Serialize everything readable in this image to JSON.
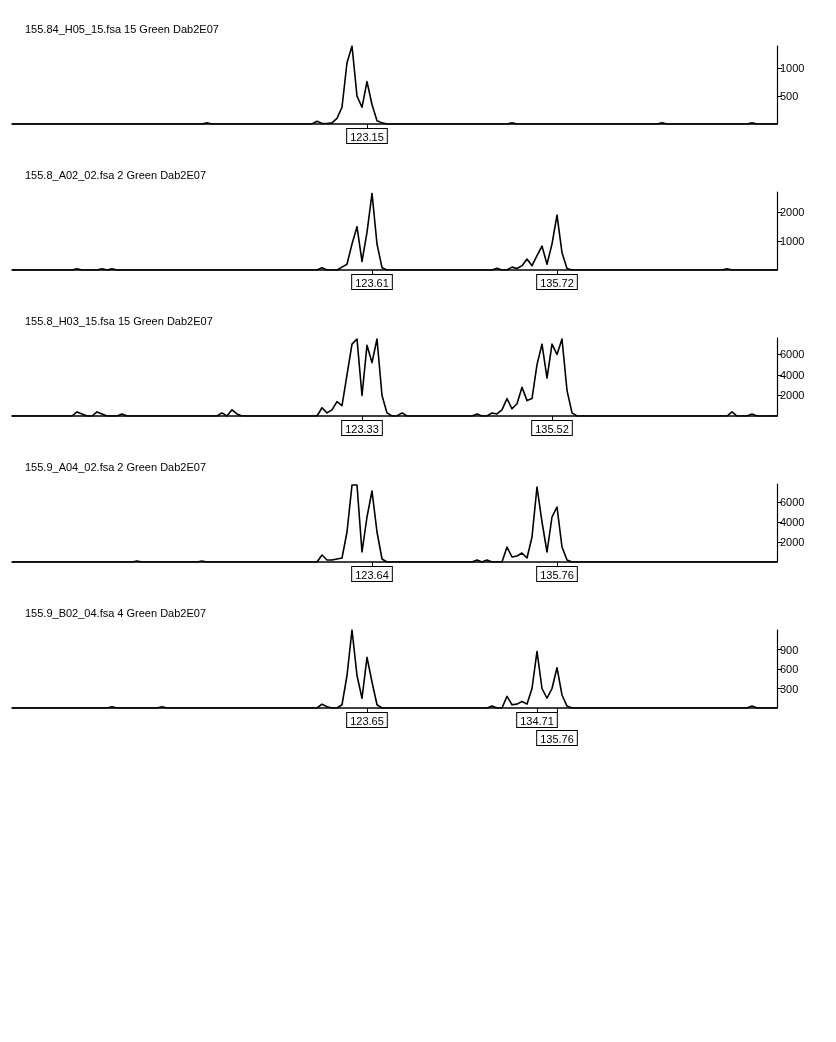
{
  "chart_data": [
    {
      "type": "line",
      "title": "155.84_H05_15.fsa 15 Green Dab2E07",
      "ylim": [
        0,
        1400
      ],
      "yticks": [
        500,
        1000
      ],
      "categories": [
        null,
        null,
        null,
        null,
        null,
        null,
        null,
        null,
        null,
        null,
        null,
        null,
        null,
        null,
        null,
        null,
        null,
        null,
        null,
        null,
        null,
        null,
        null,
        null,
        null,
        null,
        null,
        null,
        null,
        null,
        null,
        null,
        null,
        null,
        null,
        null,
        null,
        null,
        null,
        null,
        null,
        null,
        null,
        null,
        null,
        null,
        null,
        null,
        null,
        null,
        null,
        null,
        null,
        null,
        null,
        null,
        null,
        null,
        null,
        null,
        null,
        null,
        null,
        null,
        null,
        null,
        null,
        null,
        null,
        null,
        null,
        "123.15",
        null,
        null,
        null,
        null,
        null,
        null,
        null,
        null,
        null,
        null,
        null,
        null,
        null,
        null,
        null,
        null,
        null,
        null,
        null,
        null,
        null,
        null,
        null,
        null,
        null,
        null,
        null,
        null,
        null,
        null,
        null,
        null,
        null,
        null,
        null,
        null,
        null,
        null,
        null,
        null,
        null,
        null,
        null,
        null,
        null,
        null,
        null,
        null,
        null,
        null,
        null,
        null,
        null,
        null,
        null,
        null,
        null,
        null,
        null,
        null,
        null,
        null,
        null,
        null,
        null,
        null,
        null,
        null,
        null,
        null,
        null,
        null,
        null,
        null,
        null,
        null,
        null,
        null,
        null,
        null,
        null,
        null
      ],
      "series": [
        {
          "color": "#000000",
          "values": [
            0,
            0,
            0,
            0,
            0,
            0,
            0,
            0,
            0,
            0,
            0,
            0,
            0,
            0,
            0,
            0,
            0,
            0,
            0,
            0,
            0,
            0,
            0,
            0,
            0,
            0,
            0,
            0,
            0,
            0,
            0,
            0,
            0,
            0,
            0,
            0,
            0,
            0,
            0,
            20,
            0,
            0,
            0,
            0,
            0,
            0,
            0,
            0,
            0,
            0,
            0,
            0,
            0,
            0,
            0,
            0,
            0,
            0,
            0,
            0,
            0,
            50,
            10,
            10,
            20,
            100,
            300,
            1100,
            1400,
            500,
            300,
            760,
            350,
            60,
            20,
            0,
            0,
            0,
            0,
            0,
            0,
            0,
            0,
            0,
            0,
            0,
            0,
            0,
            0,
            0,
            0,
            0,
            0,
            0,
            0,
            0,
            0,
            0,
            0,
            0,
            20,
            0,
            0,
            0,
            0,
            0,
            0,
            0,
            0,
            0,
            0,
            0,
            0,
            0,
            0,
            0,
            0,
            0,
            0,
            0,
            0,
            0,
            0,
            0,
            0,
            0,
            0,
            0,
            0,
            0,
            20,
            0,
            0,
            0,
            0,
            0,
            0,
            0,
            0,
            0,
            0,
            0,
            0,
            0,
            0,
            0,
            0,
            0,
            20,
            0,
            0,
            0,
            0,
            0
          ]
        }
      ]
    },
    {
      "type": "line",
      "title": "155.8_A02_02.fsa 2 Green Dab2E07",
      "ylim": [
        0,
        2700
      ],
      "yticks": [
        1000,
        2000
      ],
      "categories": [
        null,
        null,
        null,
        null,
        null,
        null,
        null,
        null,
        null,
        null,
        null,
        null,
        null,
        null,
        null,
        null,
        null,
        null,
        null,
        null,
        null,
        null,
        null,
        null,
        null,
        null,
        null,
        null,
        null,
        null,
        null,
        null,
        null,
        null,
        null,
        null,
        null,
        null,
        null,
        null,
        null,
        null,
        null,
        null,
        null,
        null,
        null,
        null,
        null,
        null,
        null,
        null,
        null,
        null,
        null,
        null,
        null,
        null,
        null,
        null,
        null,
        null,
        null,
        null,
        null,
        null,
        null,
        null,
        null,
        null,
        null,
        null,
        "123.61",
        null,
        null,
        null,
        null,
        null,
        null,
        null,
        null,
        null,
        null,
        null,
        null,
        null,
        null,
        null,
        null,
        null,
        null,
        null,
        null,
        null,
        null,
        null,
        null,
        null,
        null,
        null,
        null,
        null,
        null,
        null,
        null,
        null,
        null,
        null,
        null,
        "135.72",
        null,
        null,
        null,
        null,
        null,
        null,
        null,
        null,
        null,
        null,
        null,
        null,
        null,
        null,
        null,
        null,
        null,
        null,
        null,
        null,
        null,
        null,
        null,
        null,
        null,
        null,
        null,
        null,
        null,
        null,
        null,
        null,
        null,
        null,
        null,
        null,
        null,
        null,
        null,
        null,
        null,
        null,
        null,
        null
      ],
      "series": [
        {
          "color": "#000000",
          "values": [
            0,
            0,
            0,
            0,
            0,
            0,
            0,
            0,
            0,
            0,
            0,
            0,
            0,
            40,
            0,
            0,
            0,
            0,
            40,
            0,
            40,
            0,
            0,
            0,
            0,
            0,
            0,
            0,
            0,
            0,
            0,
            0,
            0,
            0,
            0,
            0,
            0,
            0,
            0,
            0,
            0,
            0,
            0,
            0,
            0,
            0,
            0,
            0,
            0,
            0,
            0,
            0,
            0,
            0,
            0,
            0,
            0,
            0,
            0,
            0,
            0,
            0,
            80,
            0,
            0,
            0,
            100,
            200,
            900,
            1500,
            300,
            1300,
            2650,
            900,
            80,
            0,
            0,
            0,
            0,
            0,
            0,
            0,
            0,
            0,
            0,
            0,
            0,
            0,
            0,
            0,
            0,
            0,
            0,
            0,
            0,
            0,
            0,
            60,
            0,
            0,
            100,
            50,
            150,
            380,
            150,
            500,
            830,
            200,
            900,
            1900,
            600,
            50,
            0,
            0,
            0,
            0,
            0,
            0,
            0,
            0,
            0,
            0,
            0,
            0,
            0,
            0,
            0,
            0,
            0,
            0,
            0,
            0,
            0,
            0,
            0,
            0,
            0,
            0,
            0,
            0,
            0,
            0,
            0,
            40,
            0,
            0,
            0,
            0,
            0,
            0,
            0,
            0,
            0,
            0
          ]
        }
      ]
    },
    {
      "type": "line",
      "title": "155.8_H03_15.fsa 15 Green Dab2E07",
      "ylim": [
        0,
        7600
      ],
      "yticks": [
        2000,
        4000,
        6000
      ],
      "categories": [
        null,
        null,
        null,
        null,
        null,
        null,
        null,
        null,
        null,
        null,
        null,
        null,
        null,
        null,
        null,
        null,
        null,
        null,
        null,
        null,
        null,
        null,
        null,
        null,
        null,
        null,
        null,
        null,
        null,
        null,
        null,
        null,
        null,
        null,
        null,
        null,
        null,
        null,
        null,
        null,
        null,
        null,
        null,
        null,
        null,
        null,
        null,
        null,
        null,
        null,
        null,
        null,
        null,
        null,
        null,
        null,
        null,
        null,
        null,
        null,
        null,
        null,
        null,
        null,
        null,
        null,
        null,
        null,
        null,
        null,
        "123.33",
        null,
        null,
        null,
        null,
        null,
        null,
        null,
        null,
        null,
        null,
        null,
        null,
        null,
        null,
        null,
        null,
        null,
        null,
        null,
        null,
        null,
        null,
        null,
        null,
        null,
        null,
        null,
        null,
        null,
        null,
        null,
        null,
        null,
        null,
        null,
        null,
        null,
        "135.52",
        null,
        null,
        null,
        null,
        null,
        null,
        null,
        null,
        null,
        null,
        null,
        null,
        null,
        null,
        null,
        null,
        null,
        null,
        null,
        null,
        null,
        null,
        null,
        null,
        null,
        null,
        null,
        null,
        null,
        null,
        null,
        null,
        null,
        null,
        null,
        null,
        null,
        null,
        null,
        null,
        null,
        null,
        null,
        null,
        null
      ],
      "series": [
        {
          "color": "#000000",
          "values": [
            0,
            0,
            0,
            0,
            0,
            0,
            0,
            0,
            0,
            0,
            0,
            0,
            0,
            400,
            200,
            0,
            0,
            400,
            200,
            0,
            0,
            0,
            200,
            0,
            0,
            0,
            0,
            0,
            0,
            0,
            0,
            0,
            0,
            0,
            0,
            0,
            0,
            0,
            0,
            0,
            0,
            0,
            300,
            0,
            600,
            200,
            0,
            0,
            0,
            0,
            0,
            0,
            0,
            0,
            0,
            0,
            0,
            0,
            0,
            0,
            0,
            0,
            800,
            300,
            600,
            1400,
            1000,
            4000,
            7000,
            7500,
            2000,
            6900,
            5200,
            7500,
            2000,
            300,
            0,
            0,
            300,
            0,
            0,
            0,
            0,
            0,
            0,
            0,
            0,
            0,
            0,
            0,
            0,
            0,
            0,
            200,
            0,
            0,
            300,
            200,
            600,
            1700,
            700,
            1200,
            2800,
            1500,
            1700,
            5000,
            7000,
            3700,
            7000,
            6000,
            7500,
            2500,
            300,
            0,
            0,
            0,
            0,
            0,
            0,
            0,
            0,
            0,
            0,
            0,
            0,
            0,
            0,
            0,
            0,
            0,
            0,
            0,
            0,
            0,
            0,
            0,
            0,
            0,
            0,
            0,
            0,
            0,
            0,
            0,
            400,
            0,
            0,
            0,
            200,
            0,
            0,
            0,
            0,
            0
          ]
        }
      ]
    },
    {
      "type": "line",
      "title": "155.9_A04_02.fsa 2 Green Dab2E07",
      "ylim": [
        0,
        7800
      ],
      "yticks": [
        2000,
        4000,
        6000
      ],
      "categories": [
        null,
        null,
        null,
        null,
        null,
        null,
        null,
        null,
        null,
        null,
        null,
        null,
        null,
        null,
        null,
        null,
        null,
        null,
        null,
        null,
        null,
        null,
        null,
        null,
        null,
        null,
        null,
        null,
        null,
        null,
        null,
        null,
        null,
        null,
        null,
        null,
        null,
        null,
        null,
        null,
        null,
        null,
        null,
        null,
        null,
        null,
        null,
        null,
        null,
        null,
        null,
        null,
        null,
        null,
        null,
        null,
        null,
        null,
        null,
        null,
        null,
        null,
        null,
        null,
        null,
        null,
        null,
        null,
        null,
        null,
        null,
        null,
        "123.64",
        null,
        null,
        null,
        null,
        null,
        null,
        null,
        null,
        null,
        null,
        null,
        null,
        null,
        null,
        null,
        null,
        null,
        null,
        null,
        null,
        null,
        null,
        null,
        null,
        null,
        null,
        null,
        null,
        null,
        null,
        null,
        null,
        null,
        null,
        null,
        null,
        "135.76",
        null,
        null,
        null,
        null,
        null,
        null,
        null,
        null,
        null,
        null,
        null,
        null,
        null,
        null,
        null,
        null,
        null,
        null,
        null,
        null,
        null,
        null,
        null,
        null,
        null,
        null,
        null,
        null,
        null,
        null,
        null,
        null,
        null,
        null,
        null,
        null,
        null,
        null,
        null,
        null,
        null,
        null,
        null,
        null
      ],
      "series": [
        {
          "color": "#000000",
          "values": [
            0,
            0,
            0,
            0,
            0,
            0,
            0,
            0,
            0,
            0,
            0,
            0,
            0,
            0,
            0,
            0,
            0,
            0,
            0,
            0,
            0,
            0,
            0,
            0,
            0,
            100,
            0,
            0,
            0,
            0,
            0,
            0,
            0,
            0,
            0,
            0,
            0,
            0,
            100,
            0,
            0,
            0,
            0,
            0,
            0,
            0,
            0,
            0,
            0,
            0,
            0,
            0,
            0,
            0,
            0,
            0,
            0,
            0,
            0,
            0,
            0,
            0,
            700,
            200,
            200,
            300,
            400,
            3000,
            7700,
            7700,
            1000,
            4500,
            7100,
            3000,
            300,
            0,
            0,
            0,
            0,
            0,
            0,
            0,
            0,
            0,
            0,
            0,
            0,
            0,
            0,
            0,
            0,
            0,
            0,
            200,
            0,
            200,
            0,
            0,
            0,
            1500,
            500,
            600,
            900,
            400,
            2500,
            7500,
            4000,
            1000,
            4500,
            5500,
            1500,
            200,
            0,
            0,
            0,
            0,
            0,
            0,
            0,
            0,
            0,
            0,
            0,
            0,
            0,
            0,
            0,
            0,
            0,
            0,
            0,
            0,
            0,
            0,
            0,
            0,
            0,
            0,
            0,
            0,
            0,
            0,
            0,
            0,
            0,
            0,
            0,
            0,
            0,
            0,
            0,
            0,
            0,
            0
          ]
        }
      ]
    },
    {
      "type": "line",
      "title": "155.9_B02_04.fsa 4 Green Dab2E07",
      "ylim": [
        0,
        1200
      ],
      "yticks": [
        300,
        600,
        900
      ],
      "categories": [
        null,
        null,
        null,
        null,
        null,
        null,
        null,
        null,
        null,
        null,
        null,
        null,
        null,
        null,
        null,
        null,
        null,
        null,
        null,
        null,
        null,
        null,
        null,
        null,
        null,
        null,
        null,
        null,
        null,
        null,
        null,
        null,
        null,
        null,
        null,
        null,
        null,
        null,
        null,
        null,
        null,
        null,
        null,
        null,
        null,
        null,
        null,
        null,
        null,
        null,
        null,
        null,
        null,
        null,
        null,
        null,
        null,
        null,
        null,
        null,
        null,
        null,
        null,
        null,
        null,
        null,
        null,
        null,
        null,
        null,
        null,
        "123.65",
        null,
        null,
        null,
        null,
        null,
        null,
        null,
        null,
        null,
        null,
        null,
        null,
        null,
        null,
        null,
        null,
        null,
        null,
        null,
        null,
        null,
        null,
        null,
        null,
        null,
        null,
        null,
        null,
        null,
        null,
        null,
        null,
        null,
        "134.71",
        null,
        null,
        null,
        "135.76",
        null,
        null,
        null,
        null,
        null,
        null,
        null,
        null,
        null,
        null,
        null,
        null,
        null,
        null,
        null,
        null,
        null,
        null,
        null,
        null,
        null,
        null,
        null,
        null,
        null,
        null,
        null,
        null,
        null,
        null,
        null,
        null,
        null,
        null,
        null,
        null,
        null,
        null,
        null,
        null,
        null,
        null,
        null,
        null
      ],
      "series": [
        {
          "color": "#000000",
          "values": [
            0,
            0,
            0,
            0,
            0,
            0,
            0,
            0,
            0,
            0,
            0,
            0,
            0,
            0,
            0,
            0,
            0,
            0,
            0,
            0,
            20,
            0,
            0,
            0,
            0,
            0,
            0,
            0,
            0,
            0,
            20,
            0,
            0,
            0,
            0,
            0,
            0,
            0,
            0,
            0,
            0,
            0,
            0,
            0,
            0,
            0,
            0,
            0,
            0,
            0,
            0,
            0,
            0,
            0,
            0,
            0,
            0,
            0,
            0,
            0,
            0,
            0,
            60,
            20,
            0,
            0,
            50,
            500,
            1200,
            500,
            150,
            780,
            400,
            50,
            0,
            0,
            0,
            0,
            0,
            0,
            0,
            0,
            0,
            0,
            0,
            0,
            0,
            0,
            0,
            0,
            0,
            0,
            0,
            0,
            0,
            0,
            30,
            0,
            0,
            180,
            50,
            60,
            100,
            60,
            300,
            870,
            300,
            150,
            300,
            620,
            200,
            30,
            0,
            0,
            0,
            0,
            0,
            0,
            0,
            0,
            0,
            0,
            0,
            0,
            0,
            0,
            0,
            0,
            0,
            0,
            0,
            0,
            0,
            0,
            0,
            0,
            0,
            0,
            0,
            0,
            0,
            0,
            0,
            0,
            0,
            0,
            0,
            0,
            30,
            0,
            0,
            0,
            0,
            0
          ]
        }
      ]
    }
  ]
}
